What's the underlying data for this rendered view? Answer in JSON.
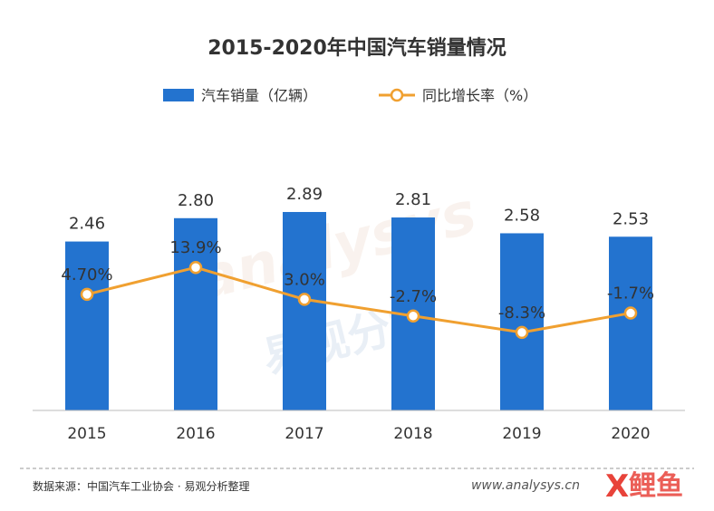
{
  "chart_data": {
    "type": "bar",
    "title": "2015-2020年中国汽车销量情况",
    "categories": [
      "2015",
      "2016",
      "2017",
      "2018",
      "2019",
      "2020"
    ],
    "series": [
      {
        "name": "汽车销量（亿辆）",
        "type": "bar",
        "color": "#2373cf",
        "values": [
          2.46,
          2.8,
          2.89,
          2.81,
          2.58,
          2.53
        ],
        "labels": [
          "2.46",
          "2.80",
          "2.89",
          "2.81",
          "2.58",
          "2.53"
        ]
      },
      {
        "name": "同比增长率（%）",
        "type": "line",
        "color": "#f0a030",
        "values": [
          4.7,
          13.9,
          3.0,
          -2.7,
          -8.3,
          -1.7
        ],
        "labels": [
          "4.70%",
          "13.9%",
          "3.0%",
          "-2.7%",
          "-8.3%",
          "-1.7%"
        ]
      }
    ],
    "bar_axis_range": [
      0,
      4.13
    ],
    "line_axis_range": [
      -35,
      62
    ],
    "grid": false,
    "legend_position": "top-center"
  },
  "source_text": "数据来源：中国汽车工业协会 · 易观分析整理",
  "watermark": {
    "analysys_text": "analysys",
    "chinese_text": "易观分析",
    "url_text": "www.analysys.cn",
    "logo_text": "鲤鱼"
  }
}
